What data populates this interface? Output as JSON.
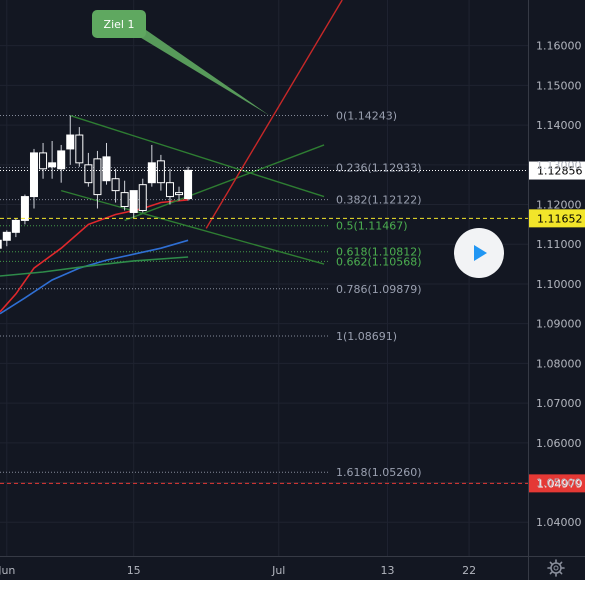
{
  "chart_data": {
    "type": "candlestick",
    "instrument_note": "",
    "y_axis": {
      "ticks": [
        "1.16000",
        "1.15000",
        "1.14000",
        "1.13000",
        "1.12000",
        "1.11000",
        "1.10000",
        "1.09000",
        "1.08000",
        "1.07000",
        "1.06000",
        "1.05000",
        "1.04000"
      ],
      "ylim": [
        1.0315,
        1.1715
      ]
    },
    "x_axis": {
      "ticks": [
        {
          "label": "Jun",
          "day": 1
        },
        {
          "label": "15",
          "day": 15
        },
        {
          "label": "Jul",
          "day": 31
        },
        {
          "label": "13",
          "day": 43
        },
        {
          "label": "22",
          "day": 52
        }
      ],
      "xlim": [
        0.25,
        58.5
      ]
    },
    "candles": [
      {
        "day": 0,
        "o": 1.109,
        "h": 1.1115,
        "l": 1.108,
        "c": 1.111
      },
      {
        "day": 1,
        "o": 1.111,
        "h": 1.1135,
        "l": 1.1095,
        "c": 1.113
      },
      {
        "day": 2,
        "o": 1.113,
        "h": 1.1165,
        "l": 1.1118,
        "c": 1.116
      },
      {
        "day": 3,
        "o": 1.116,
        "h": 1.1225,
        "l": 1.115,
        "c": 1.122
      },
      {
        "day": 4,
        "o": 1.122,
        "h": 1.134,
        "l": 1.119,
        "c": 1.133
      },
      {
        "day": 5,
        "o": 1.133,
        "h": 1.1355,
        "l": 1.1265,
        "c": 1.129
      },
      {
        "day": 6,
        "o": 1.1295,
        "h": 1.136,
        "l": 1.1265,
        "c": 1.1305
      },
      {
        "day": 7,
        "o": 1.129,
        "h": 1.135,
        "l": 1.1255,
        "c": 1.1335
      },
      {
        "day": 8,
        "o": 1.134,
        "h": 1.1424,
        "l": 1.13,
        "c": 1.1375
      },
      {
        "day": 9,
        "o": 1.1375,
        "h": 1.1395,
        "l": 1.1295,
        "c": 1.1305
      },
      {
        "day": 10,
        "o": 1.13,
        "h": 1.133,
        "l": 1.1245,
        "c": 1.1255
      },
      {
        "day": 11,
        "o": 1.1315,
        "h": 1.1335,
        "l": 1.119,
        "c": 1.1225
      },
      {
        "day": 12,
        "o": 1.126,
        "h": 1.1355,
        "l": 1.125,
        "c": 1.132
      },
      {
        "day": 13,
        "o": 1.1265,
        "h": 1.129,
        "l": 1.1205,
        "c": 1.1235
      },
      {
        "day": 14,
        "o": 1.123,
        "h": 1.126,
        "l": 1.1185,
        "c": 1.1195
      },
      {
        "day": 15,
        "o": 1.118,
        "h": 1.1235,
        "l": 1.1165,
        "c": 1.1235
      },
      {
        "day": 16,
        "o": 1.125,
        "h": 1.1265,
        "l": 1.118,
        "c": 1.1185
      },
      {
        "day": 17,
        "o": 1.1255,
        "h": 1.135,
        "l": 1.1245,
        "c": 1.1305
      },
      {
        "day": 18,
        "o": 1.131,
        "h": 1.1325,
        "l": 1.1235,
        "c": 1.1255
      },
      {
        "day": 19,
        "o": 1.1255,
        "h": 1.129,
        "l": 1.12,
        "c": 1.122
      },
      {
        "day": 20,
        "o": 1.123,
        "h": 1.1245,
        "l": 1.121,
        "c": 1.1225
      },
      {
        "day": 21,
        "o": 1.1215,
        "h": 1.1295,
        "l": 1.121,
        "c": 1.1286
      }
    ],
    "moving_averages": [
      {
        "color": "#e0282c",
        "points": [
          [
            0.25,
            1.093
          ],
          [
            2,
            1.0975
          ],
          [
            4,
            1.104
          ],
          [
            7,
            1.109
          ],
          [
            10,
            1.115
          ],
          [
            13,
            1.1175
          ],
          [
            16,
            1.119
          ],
          [
            18,
            1.1205
          ],
          [
            21,
            1.1212
          ]
        ]
      },
      {
        "color": "#2f6fd4",
        "points": [
          [
            0.25,
            1.0925
          ],
          [
            3,
            1.0965
          ],
          [
            6,
            1.101
          ],
          [
            9,
            1.104
          ],
          [
            12,
            1.106
          ],
          [
            15,
            1.1075
          ],
          [
            18,
            1.109
          ],
          [
            21,
            1.111
          ]
        ]
      },
      {
        "color": "#2e8b4a",
        "points": [
          [
            0.25,
            1.102
          ],
          [
            5,
            1.103
          ],
          [
            10,
            1.1045
          ],
          [
            15,
            1.1058
          ],
          [
            21,
            1.1068
          ]
        ]
      }
    ],
    "fibonacci": [
      {
        "ratio": "0",
        "label": "0(1.14243)",
        "price": 1.14243,
        "color": "#9aa0b0"
      },
      {
        "ratio": "0.236",
        "label": "0.236(1.12933)",
        "price": 1.12933,
        "color": "#9aa0b0"
      },
      {
        "ratio": "0.382",
        "label": "0.382(1.12122)",
        "price": 1.12122,
        "color": "#9aa0b0"
      },
      {
        "ratio": "0.5",
        "label": "0.5(1.11467)",
        "price": 1.11467,
        "color": "#4caf50"
      },
      {
        "ratio": "0.618",
        "label": "0.618(1.10812)",
        "price": 1.10812,
        "color": "#4caf50"
      },
      {
        "ratio": "0.662",
        "label": "0.662(1.10568)",
        "price": 1.10568,
        "color": "#4caf50"
      },
      {
        "ratio": "0.786",
        "label": "0.786(1.09879)",
        "price": 1.09879,
        "color": "#9aa0b0"
      },
      {
        "ratio": "1",
        "label": "1(1.08691)",
        "price": 1.08691,
        "color": "#9aa0b0"
      },
      {
        "ratio": "1.618",
        "label": "1.618(1.05260)",
        "price": 1.0526,
        "color": "#9aa0b0"
      }
    ],
    "price_markers": [
      {
        "value": "1.12856",
        "price": 1.12856,
        "bg": "#ffffff",
        "fg": "#000000",
        "line": "white-dotted"
      },
      {
        "value": "1.11652",
        "price": 1.11652,
        "bg": "#f2e52a",
        "fg": "#000000",
        "line": "yellow-dashed"
      },
      {
        "value": "1.04979",
        "price": 1.04979,
        "bg": "#e53935",
        "fg": "#ffffff",
        "line": "red-dashed"
      }
    ],
    "trend_lines": [
      {
        "color": "#2e7d32",
        "from": [
          8,
          1.1424
        ],
        "to": [
          36,
          1.122
        ]
      },
      {
        "color": "#2e7d32",
        "from": [
          7,
          1.1235
        ],
        "to": [
          36,
          1.105
        ]
      },
      {
        "color": "#2e7d32",
        "from": [
          14,
          1.116
        ],
        "to": [
          36,
          1.135
        ]
      },
      {
        "color": "#c62828",
        "from": [
          23,
          1.114
        ],
        "to": [
          38,
          1.1715
        ]
      }
    ],
    "callout": {
      "label": "Ziel 1",
      "color": "#5fa860",
      "pointer_to": [
        30,
        1.1424
      ]
    }
  },
  "ui": {
    "play_icon": "play-icon",
    "settings_icon": "gear-icon"
  }
}
